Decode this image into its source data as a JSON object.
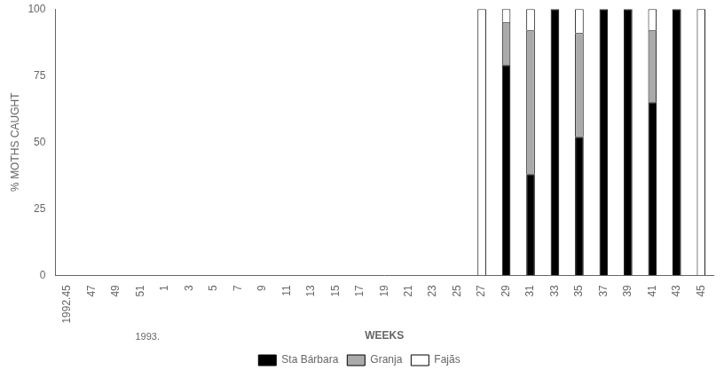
{
  "chart_data": {
    "type": "bar",
    "stacked": true,
    "categories": [
      "1992.45",
      "47",
      "49",
      "51",
      "1",
      "3",
      "5",
      "7",
      "9",
      "11",
      "13",
      "15",
      "17",
      "19",
      "21",
      "23",
      "25",
      "27",
      "29",
      "31",
      "33",
      "35",
      "37",
      "39",
      "41",
      "43",
      "45"
    ],
    "series": [
      {
        "name": "Sta Bárbara",
        "color": "#000000",
        "values": [
          0,
          0,
          0,
          0,
          0,
          0,
          0,
          0,
          0,
          0,
          0,
          0,
          0,
          0,
          0,
          0,
          0,
          0,
          79,
          38,
          100,
          52,
          100,
          100,
          65,
          100,
          0
        ]
      },
      {
        "name": "Granja",
        "color": "#aaaaaa",
        "values": [
          0,
          0,
          0,
          0,
          0,
          0,
          0,
          0,
          0,
          0,
          0,
          0,
          0,
          0,
          0,
          0,
          0,
          0,
          16,
          54,
          0,
          39,
          0,
          0,
          27,
          0,
          0
        ]
      },
      {
        "name": "Fajãs",
        "color": "#ffffff",
        "values": [
          0,
          0,
          0,
          0,
          0,
          0,
          0,
          0,
          0,
          0,
          0,
          0,
          0,
          0,
          0,
          0,
          0,
          100,
          5,
          8,
          0,
          9,
          0,
          0,
          8,
          0,
          100
        ]
      }
    ],
    "xlabel": "WEEKS",
    "ylabel": "% MOTHS CAUGHT",
    "annotations": [
      "1993."
    ],
    "ylim": [
      0,
      100
    ],
    "yticks": [
      0,
      25,
      50,
      75,
      100
    ],
    "grid": false,
    "legend": "bottom"
  }
}
